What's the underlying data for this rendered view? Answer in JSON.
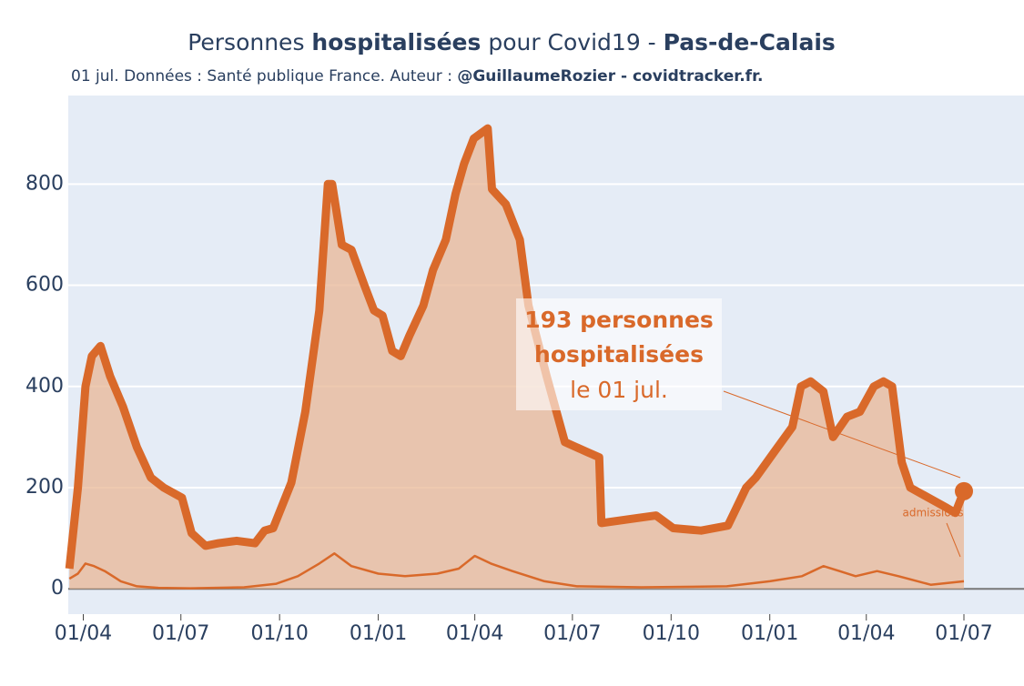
{
  "chart_data": {
    "type": "line",
    "title": {
      "part1": "Personnes ",
      "part2": "hospitalisées",
      "part3": " pour Covid19 - ",
      "part4": "Pas-de-Calais"
    },
    "subtitle": {
      "part1": "01 jul. Données : Santé publique France. Auteur : ",
      "part2": "@GuillaumeRozier - covidtracker.fr."
    },
    "xlim": [
      -14,
      877
    ],
    "ylim": [
      -50,
      975
    ],
    "xticks": [
      {
        "value": 0,
        "label": "01/04"
      },
      {
        "value": 91,
        "label": "01/07"
      },
      {
        "value": 183,
        "label": "01/10"
      },
      {
        "value": 275,
        "label": "01/01"
      },
      {
        "value": 365,
        "label": "01/04"
      },
      {
        "value": 456,
        "label": "01/07"
      },
      {
        "value": 548,
        "label": "01/10"
      },
      {
        "value": 640,
        "label": "01/01"
      },
      {
        "value": 730,
        "label": "01/04"
      },
      {
        "value": 821,
        "label": "01/07"
      }
    ],
    "yticks": [
      0,
      200,
      400,
      600,
      800
    ],
    "grid": true,
    "series": [
      {
        "color": "#d9692a",
        "fill": "#e8b796",
        "x": [
          -13,
          -5,
          2,
          8,
          16,
          25,
          37,
          50,
          63,
          75,
          92,
          101,
          114,
          126,
          143,
          160,
          169,
          177,
          194,
          207,
          220,
          228,
          232,
          241,
          250,
          262,
          271,
          279,
          288,
          296,
          304,
          317,
          326,
          338,
          347,
          355,
          364,
          377,
          381,
          394,
          407,
          415,
          432,
          449,
          470,
          481,
          483,
          517,
          534,
          550,
          576,
          601,
          618,
          627,
          644,
          661,
          669,
          678,
          690,
          699,
          712,
          724,
          737,
          746,
          754,
          763,
          771,
          788,
          805,
          813,
          821
        ],
        "values": [
          40,
          200,
          400,
          460,
          480,
          420,
          360,
          280,
          220,
          200,
          180,
          110,
          85,
          90,
          95,
          90,
          115,
          120,
          210,
          350,
          550,
          800,
          800,
          680,
          670,
          600,
          550,
          540,
          470,
          460,
          500,
          560,
          630,
          690,
          780,
          840,
          890,
          910,
          790,
          760,
          690,
          560,
          420,
          290,
          270,
          260,
          130,
          140,
          145,
          120,
          115,
          125,
          200,
          220,
          270,
          320,
          400,
          410,
          390,
          300,
          340,
          350,
          400,
          410,
          400,
          250,
          200,
          180,
          160,
          150,
          193
        ]
      },
      {
        "name": "admissions",
        "color": "#d9692a",
        "x": [
          -13,
          -5,
          2,
          10,
          20,
          35,
          50,
          70,
          100,
          150,
          180,
          200,
          220,
          234,
          250,
          275,
          300,
          330,
          350,
          365,
          380,
          400,
          430,
          460,
          520,
          600,
          640,
          670,
          690,
          705,
          720,
          740,
          760,
          790,
          821
        ],
        "values": [
          20,
          30,
          50,
          45,
          35,
          15,
          5,
          2,
          1,
          3,
          10,
          25,
          50,
          70,
          45,
          30,
          25,
          30,
          40,
          65,
          50,
          35,
          15,
          5,
          3,
          5,
          15,
          25,
          45,
          35,
          25,
          35,
          25,
          8,
          15
        ]
      }
    ],
    "annotation": {
      "line1": "193 personnes",
      "line2": "hospitalisées",
      "line3": "le 01 jul."
    }
  }
}
